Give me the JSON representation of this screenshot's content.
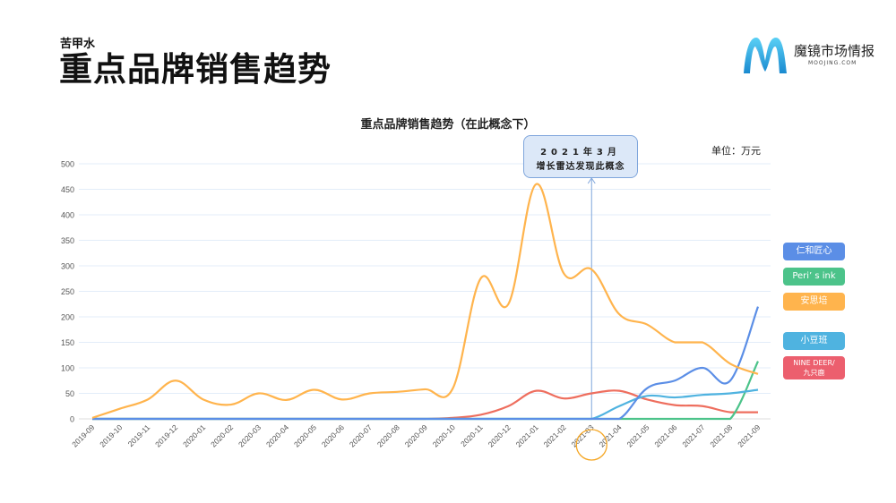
{
  "header": {
    "subtitle": "苦甲水",
    "title": "重点品牌销售趋势"
  },
  "logo": {
    "name": "魔镜市场情报",
    "url_text": "MOOJING.COM",
    "icon": "m-logo-icon"
  },
  "annotation": {
    "line1": "2021年3月",
    "line2": "增长雷达发现此概念",
    "month": "2021-03"
  },
  "chart_data": {
    "type": "line",
    "title": "重点品牌销售趋势（在此概念下）",
    "unit_label": "单位：万元",
    "xlabel": "",
    "ylabel": "",
    "ylim": [
      0,
      500
    ],
    "yticks": [
      0,
      50,
      100,
      150,
      200,
      250,
      300,
      350,
      400,
      450,
      500
    ],
    "grid": true,
    "legend_position": "right",
    "categories": [
      "2019-09",
      "2019-10",
      "2019-11",
      "2019-12",
      "2020-01",
      "2020-02",
      "2020-03",
      "2020-04",
      "2020-05",
      "2020-06",
      "2020-07",
      "2020-08",
      "2020-09",
      "2020-10",
      "2020-11",
      "2020-12",
      "2021-01",
      "2021-02",
      "2021-03",
      "2021-04",
      "2021-05",
      "2021-06",
      "2021-07",
      "2021-08",
      "2021-09"
    ],
    "highlighted_category": "2021-03",
    "series": [
      {
        "name": "仁和匠心",
        "color": "#5b8ee6",
        "values": [
          0,
          0,
          0,
          0,
          0,
          0,
          0,
          0,
          0,
          0,
          0,
          0,
          0,
          0,
          0,
          0,
          0,
          0,
          0,
          0,
          60,
          75,
          100,
          75,
          220
        ]
      },
      {
        "name": "Peri’s ink",
        "color": "#4cc38a",
        "values": [
          0,
          0,
          0,
          0,
          0,
          0,
          0,
          0,
          0,
          0,
          0,
          0,
          0,
          0,
          0,
          0,
          0,
          0,
          0,
          0,
          0,
          0,
          0,
          0,
          113
        ]
      },
      {
        "name": "安思培",
        "color": "#ffb44d",
        "values": [
          2,
          20,
          38,
          75,
          38,
          28,
          50,
          37,
          57,
          38,
          50,
          53,
          58,
          60,
          275,
          225,
          460,
          285,
          293,
          205,
          185,
          150,
          150,
          108,
          88
        ]
      },
      {
        "name": "小豆班",
        "color": "#4fb3e0",
        "values": [
          0,
          0,
          0,
          0,
          0,
          0,
          0,
          0,
          0,
          0,
          0,
          0,
          0,
          0,
          0,
          0,
          0,
          0,
          0,
          25,
          45,
          42,
          47,
          50,
          57
        ]
      },
      {
        "name": "NINE DEER/九只鹿",
        "color": "#ee6e5e",
        "values": [
          0,
          0,
          0,
          0,
          0,
          0,
          0,
          0,
          0,
          0,
          0,
          0,
          0,
          2,
          8,
          25,
          55,
          40,
          50,
          55,
          38,
          27,
          25,
          13,
          13
        ]
      }
    ]
  },
  "legend": [
    {
      "label": "仁和匠心",
      "color": "#5b8ee6"
    },
    {
      "label": "Peri’ s ink",
      "color": "#4cc38a"
    },
    {
      "label": "安思培",
      "color": "#ffb44d"
    },
    {
      "label": "小豆班",
      "color": "#4fb3e0"
    },
    {
      "label_line1": "NINE DEER/",
      "label_line2": "九只鹿",
      "color": "#ec5f6e"
    }
  ]
}
